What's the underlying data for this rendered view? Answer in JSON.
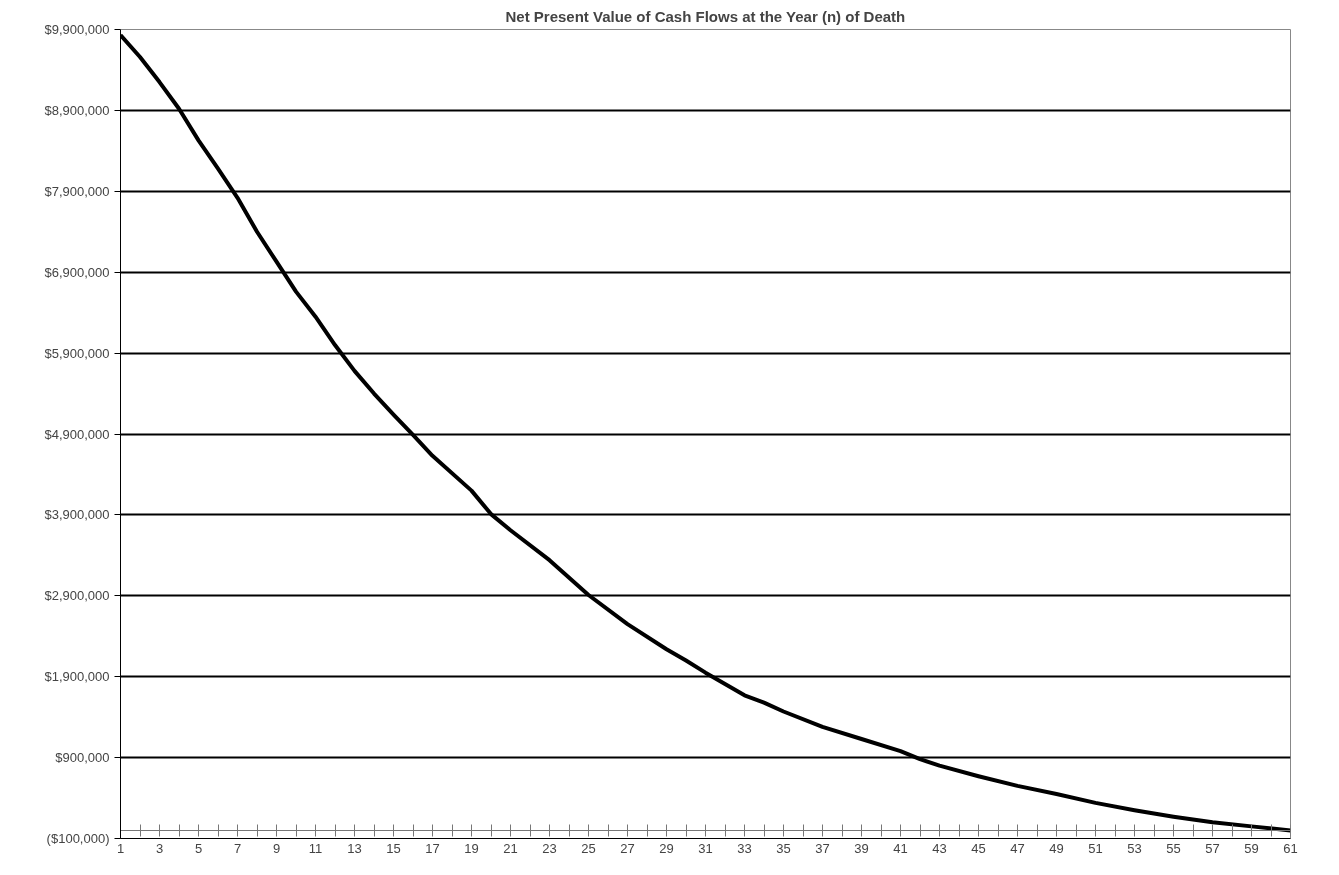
{
  "chart_data": {
    "type": "line",
    "title": "Net Present Value of Cash Flows at the Year (n) of Death",
    "x": [
      1,
      2,
      3,
      4,
      5,
      6,
      7,
      8,
      9,
      10,
      11,
      12,
      13,
      14,
      15,
      16,
      17,
      19,
      20,
      21,
      23,
      25,
      27,
      29,
      30,
      31,
      33,
      34,
      35,
      37,
      39,
      41,
      42,
      43,
      45,
      47,
      49,
      51,
      53,
      55,
      57,
      59,
      61
    ],
    "series": [
      {
        "color": "#000000",
        "values": [
          9830000,
          9560000,
          9250000,
          8920000,
          8530000,
          8180000,
          7820000,
          7400000,
          7030000,
          6660000,
          6350000,
          6000000,
          5680000,
          5400000,
          5140000,
          4890000,
          4630000,
          4200000,
          3910000,
          3710000,
          3340000,
          2910000,
          2550000,
          2240000,
          2100000,
          1950000,
          1670000,
          1580000,
          1470000,
          1280000,
          1130000,
          980000,
          880000,
          800000,
          670000,
          550000,
          450000,
          340000,
          250000,
          170000,
          100000,
          50000,
          0
        ]
      }
    ],
    "xlim": [
      1,
      61
    ],
    "xticks": [
      1,
      {
        "value": 2,
        "label": null
      },
      3,
      {
        "value": 4,
        "label": null
      },
      5,
      {
        "value": 6,
        "label": null
      },
      7,
      {
        "value": 8,
        "label": null
      },
      9,
      {
        "value": 10,
        "label": null
      },
      11,
      {
        "value": 12,
        "label": null
      },
      13,
      {
        "value": 14,
        "label": null
      },
      15,
      {
        "value": 16,
        "label": null
      },
      17,
      {
        "value": 18,
        "label": null
      },
      19,
      {
        "value": 20,
        "label": null
      },
      21,
      {
        "value": 22,
        "label": null
      },
      23,
      {
        "value": 24,
        "label": null
      },
      25,
      {
        "value": 26,
        "label": null
      },
      27,
      {
        "value": 28,
        "label": null
      },
      29,
      {
        "value": 30,
        "label": null
      },
      31,
      {
        "value": 32,
        "label": null
      },
      33,
      {
        "value": 34,
        "label": null
      },
      35,
      {
        "value": 36,
        "label": null
      },
      37,
      {
        "value": 38,
        "label": null
      },
      39,
      {
        "value": 40,
        "label": null
      },
      41,
      {
        "value": 42,
        "label": null
      },
      43,
      {
        "value": 44,
        "label": null
      },
      45,
      {
        "value": 46,
        "label": null
      },
      47,
      {
        "value": 48,
        "label": null
      },
      49,
      {
        "value": 50,
        "label": null
      },
      51,
      {
        "value": 52,
        "label": null
      },
      53,
      {
        "value": 54,
        "label": null
      },
      55,
      {
        "value": 56,
        "label": null
      },
      57,
      {
        "value": 58,
        "label": null
      },
      59,
      {
        "value": 60,
        "label": null
      },
      61
    ],
    "ylim": [
      -100000,
      9900000
    ],
    "yticks": [
      {
        "value": -100000,
        "label": "($100,000)"
      },
      {
        "value": 900000,
        "label": "$900,000"
      },
      {
        "value": 1900000,
        "label": "$1,900,000"
      },
      {
        "value": 2900000,
        "label": "$2,900,000"
      },
      {
        "value": 3900000,
        "label": "$3,900,000"
      },
      {
        "value": 4900000,
        "label": "$4,900,000"
      },
      {
        "value": 5900000,
        "label": "$5,900,000"
      },
      {
        "value": 6900000,
        "label": "$6,900,000"
      },
      {
        "value": 7900000,
        "label": "$7,900,000"
      },
      {
        "value": 8900000,
        "label": "$8,900,000"
      },
      {
        "value": 9900000,
        "label": "$9,900,000"
      }
    ],
    "grid": "y",
    "marker": "none",
    "line_style": "solid"
  }
}
